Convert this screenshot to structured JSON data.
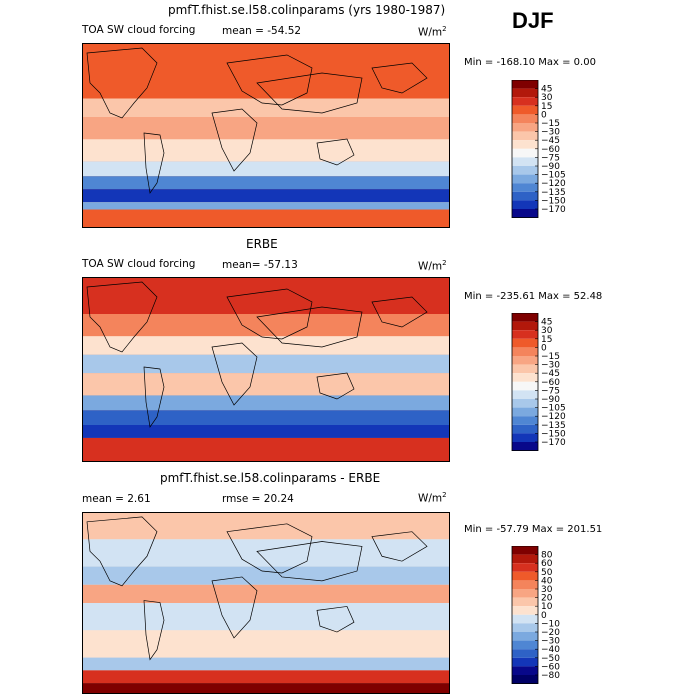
{
  "season": "DJF",
  "chart_data": [
    {
      "type": "heatmap",
      "title": "pmfT.fhist.se.l58.colinparams (yrs 1980-1987)",
      "variable": "TOA SW cloud forcing",
      "mean_text": "mean =  -54.52",
      "units": "W/m",
      "units_exp": "2",
      "minmax_text": "Min = -168.10 Max =    0.00",
      "colorbar": {
        "levels": [
          "45",
          "30",
          "15",
          "0",
          "−15",
          "−30",
          "−45",
          "−60",
          "−75",
          "−90",
          "−105",
          "−120",
          "−135",
          "−150",
          "−170"
        ],
        "colors": [
          "#7f0000",
          "#b2180b",
          "#d7301f",
          "#ef5a2a",
          "#f4845c",
          "#f8a583",
          "#fbc6aa",
          "#fde2cf",
          "#f7f7f7",
          "#d2e3f3",
          "#a8c8ea",
          "#7ba9df",
          "#4f86d3",
          "#2e62c6",
          "#1336b8",
          "#08088a"
        ]
      }
    },
    {
      "type": "heatmap",
      "title": "ERBE",
      "variable": "TOA SW cloud forcing",
      "mean_text": "mean= -57.13",
      "units": "W/m",
      "units_exp": "2",
      "minmax_text": "Min = -235.61 Max =  52.48",
      "colorbar": {
        "levels": [
          "45",
          "30",
          "15",
          "0",
          "−15",
          "−30",
          "−45",
          "−60",
          "−75",
          "−90",
          "−105",
          "−120",
          "−135",
          "−150",
          "−170"
        ],
        "colors": [
          "#7f0000",
          "#b2180b",
          "#d7301f",
          "#ef5a2a",
          "#f4845c",
          "#f8a583",
          "#fbc6aa",
          "#fde2cf",
          "#f7f7f7",
          "#d2e3f3",
          "#a8c8ea",
          "#7ba9df",
          "#4f86d3",
          "#2e62c6",
          "#1336b8",
          "#08088a"
        ]
      }
    },
    {
      "type": "heatmap",
      "title": "pmfT.fhist.se.l58.colinparams - ERBE",
      "mean_text": "mean =    2.61",
      "rmse_text": "rmse =   20.24",
      "units": "W/m",
      "units_exp": "2",
      "minmax_text": "Min = -57.79 Max = 201.51",
      "colorbar": {
        "levels": [
          "80",
          "60",
          "50",
          "40",
          "30",
          "20",
          "10",
          "0",
          "−10",
          "−20",
          "−30",
          "−40",
          "−50",
          "−60",
          "−80"
        ],
        "colors": [
          "#7f0000",
          "#b2180b",
          "#d7301f",
          "#ef5a2a",
          "#f4845c",
          "#f8a583",
          "#fbc6aa",
          "#fde2cf",
          "#d2e3f3",
          "#a8c8ea",
          "#7ba9df",
          "#4f86d3",
          "#2e62c6",
          "#1336b8",
          "#08088a",
          "#000066"
        ]
      }
    }
  ]
}
